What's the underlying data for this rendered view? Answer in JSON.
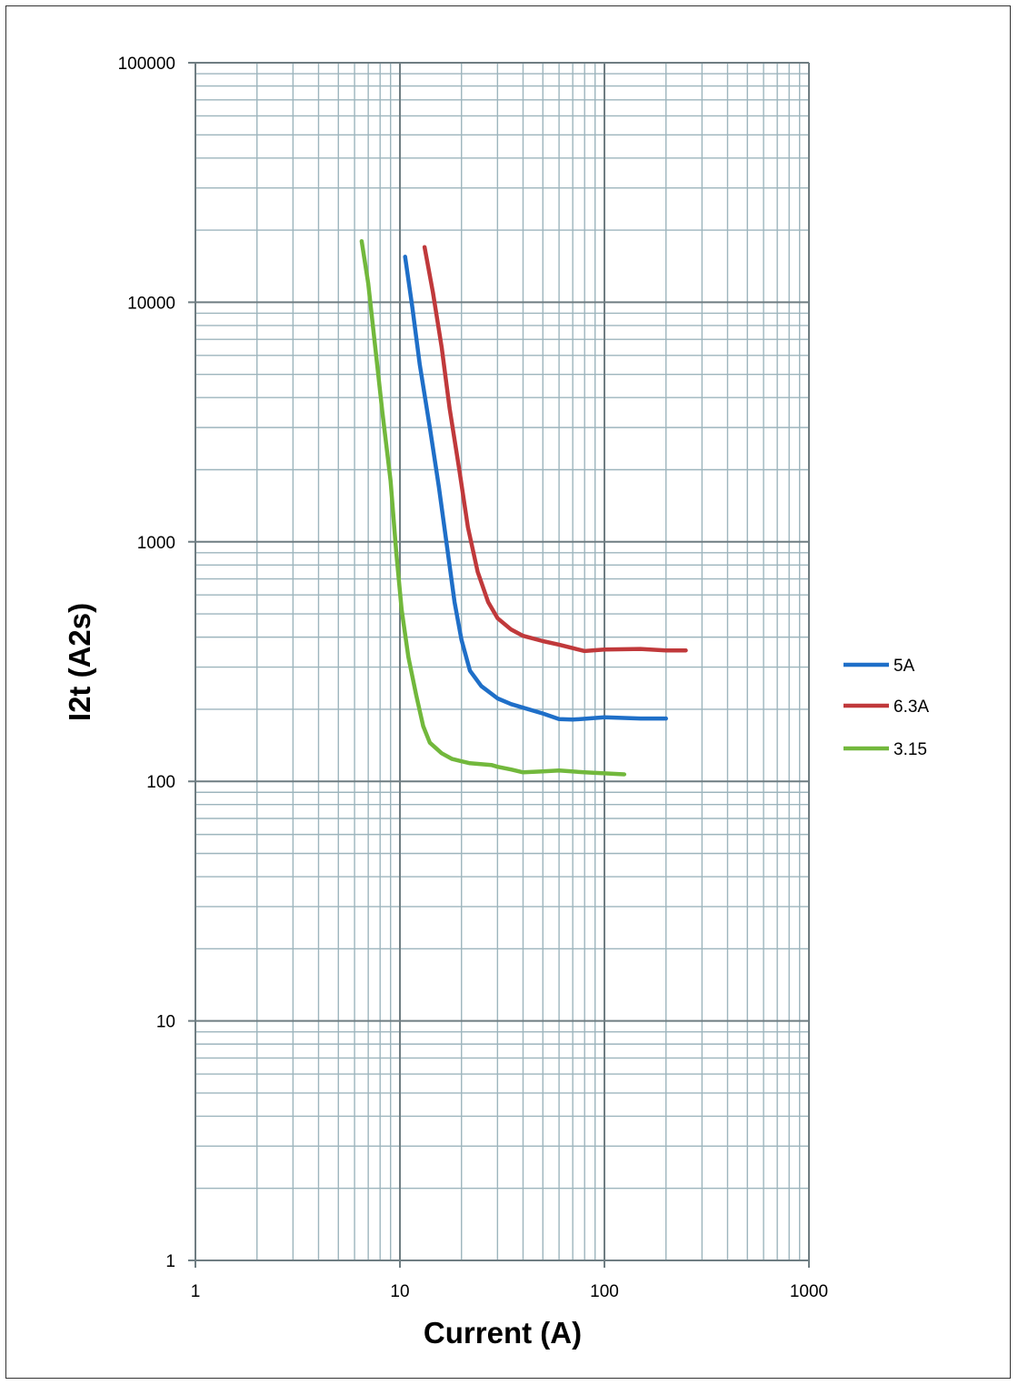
{
  "chart_data": {
    "type": "line",
    "title": "",
    "xlabel": "Current (A)",
    "ylabel": "I2t (A2s)",
    "xscale": "log",
    "yscale": "log",
    "xlim": [
      1,
      1000
    ],
    "ylim": [
      1,
      100000
    ],
    "x_ticks": [
      "1",
      "10",
      "100",
      "1000"
    ],
    "y_ticks": [
      "1",
      "10",
      "100",
      "1000",
      "10000",
      "100000"
    ],
    "grid": true,
    "legend_position": "right",
    "series": [
      {
        "name": "5A",
        "color": "#1f6fc8",
        "points": [
          [
            10.6,
            15500
          ],
          [
            11.5,
            9500
          ],
          [
            12.5,
            5500
          ],
          [
            14,
            3000
          ],
          [
            15.5,
            1700
          ],
          [
            17,
            950
          ],
          [
            18.5,
            560
          ],
          [
            20,
            390
          ],
          [
            22,
            290
          ],
          [
            25,
            250
          ],
          [
            30,
            222
          ],
          [
            35,
            210
          ],
          [
            40,
            203
          ],
          [
            50,
            192
          ],
          [
            60,
            182
          ],
          [
            70,
            181
          ],
          [
            100,
            185
          ],
          [
            150,
            183
          ],
          [
            200,
            183
          ]
        ]
      },
      {
        "name": "6.3A",
        "color": "#c0393b",
        "points": [
          [
            13.2,
            17000
          ],
          [
            14.5,
            11000
          ],
          [
            16,
            6500
          ],
          [
            17.5,
            3600
          ],
          [
            19.5,
            2000
          ],
          [
            21.5,
            1150
          ],
          [
            24,
            750
          ],
          [
            27,
            560
          ],
          [
            30,
            480
          ],
          [
            35,
            430
          ],
          [
            40,
            405
          ],
          [
            50,
            385
          ],
          [
            60,
            372
          ],
          [
            70,
            360
          ],
          [
            80,
            350
          ],
          [
            100,
            355
          ],
          [
            150,
            357
          ],
          [
            200,
            352
          ],
          [
            250,
            352
          ]
        ]
      },
      {
        "name": "3.15",
        "color": "#72b83c",
        "points": [
          [
            6.5,
            18000
          ],
          [
            7,
            12000
          ],
          [
            7.5,
            7000
          ],
          [
            8.2,
            3500
          ],
          [
            9,
            1800
          ],
          [
            9.6,
            900
          ],
          [
            10.2,
            520
          ],
          [
            11,
            330
          ],
          [
            12,
            230
          ],
          [
            13,
            170
          ],
          [
            14,
            145
          ],
          [
            16,
            131
          ],
          [
            18,
            124
          ],
          [
            22,
            119
          ],
          [
            28,
            117
          ],
          [
            30,
            115
          ],
          [
            35,
            112
          ],
          [
            40,
            109
          ],
          [
            50,
            110
          ],
          [
            60,
            111
          ],
          [
            80,
            109
          ],
          [
            100,
            108
          ],
          [
            125,
            107
          ]
        ]
      }
    ]
  }
}
